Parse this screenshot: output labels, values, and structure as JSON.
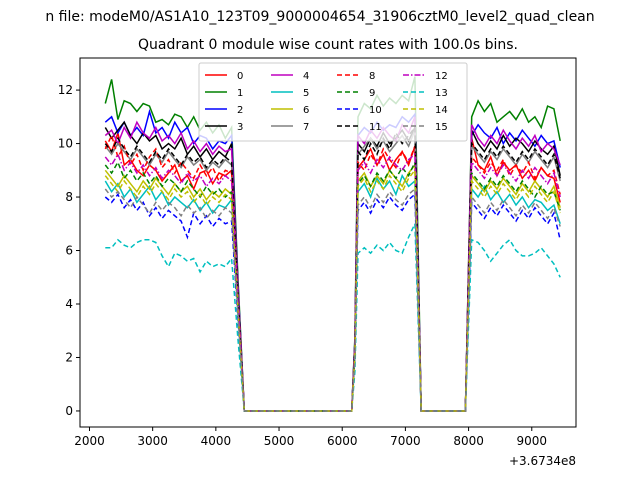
{
  "chart_data": {
    "type": "line",
    "suptitle": "n file: modeM0/AS1A10_123T09_9000004654_31906cztM0_level2_quad_clean",
    "title": "Quadrant 0 module wise count rates with 100.0s bins.",
    "x_offset_label": "+3.6734e8",
    "xlim": [
      1850,
      9700
    ],
    "ylim": [
      -0.6,
      13.2
    ],
    "x_ticks": [
      2000,
      3000,
      4000,
      5000,
      6000,
      7000,
      8000,
      9000
    ],
    "y_ticks": [
      0,
      2,
      4,
      6,
      8,
      10,
      12
    ],
    "x_tick_labels": [
      "2000",
      "3000",
      "4000",
      "5000",
      "6000",
      "7000",
      "8000",
      "9000"
    ],
    "y_tick_labels": [
      "0",
      "2",
      "4",
      "6",
      "8",
      "10",
      "12"
    ],
    "grid": false,
    "legend_placement": "top-center",
    "legend_columns": 4,
    "segments": [
      {
        "start": 2250,
        "n": 21
      },
      {
        "start": 6250,
        "n": 10
      },
      {
        "start": 8050,
        "n": 15
      }
    ],
    "zero_span": [
      4450,
      6150
    ],
    "gap_span": [
      7250,
      7950
    ],
    "series": [
      {
        "name": "0",
        "color": "#ff0000",
        "dash": "solid",
        "base": 9.0,
        "s1": [
          10.1,
          9.7,
          10.4,
          9.2,
          9.4,
          9.0,
          8.8,
          9.2,
          9.0,
          8.6,
          8.9,
          9.2,
          8.6,
          8.8,
          8.3,
          8.9,
          9.0,
          8.5,
          8.9,
          8.8,
          9.0
        ],
        "s2": [
          9.1,
          9.4,
          9.8,
          9.2,
          9.6,
          9.0,
          9.4,
          9.7,
          9.2,
          9.9
        ],
        "s3": [
          10.2,
          9.2,
          9.0,
          9.5,
          8.8,
          9.3,
          9.0,
          9.2,
          8.7,
          9.0,
          8.6,
          9.1,
          8.8,
          8.7,
          7.8
        ]
      },
      {
        "name": "1",
        "color": "#008000",
        "dash": "solid",
        "base": 11.0,
        "s1": [
          11.5,
          12.4,
          10.9,
          11.6,
          11.5,
          11.2,
          11.5,
          11.4,
          10.8,
          10.9,
          10.7,
          11.1,
          11.0,
          10.6,
          11.0,
          10.5,
          10.8,
          10.4,
          10.7,
          10.2,
          10.6
        ],
        "s2": [
          11.0,
          11.5,
          11.3,
          11.8,
          11.4,
          11.7,
          11.5,
          11.8,
          11.6,
          12.5
        ],
        "s3": [
          11.0,
          11.6,
          11.2,
          11.5,
          10.8,
          11.0,
          11.2,
          10.9,
          11.3,
          10.8,
          11.0,
          10.6,
          11.4,
          11.3,
          10.1
        ]
      },
      {
        "name": "2",
        "color": "#0000ff",
        "dash": "solid",
        "base": 10.5,
        "s1": [
          10.8,
          11.0,
          10.4,
          10.8,
          10.3,
          10.6,
          10.3,
          11.2,
          10.4,
          10.6,
          10.2,
          10.8,
          10.4,
          10.6,
          10.0,
          10.3,
          10.2,
          9.8,
          10.1,
          10.0,
          10.3
        ],
        "s2": [
          10.3,
          10.6,
          10.4,
          10.8,
          10.5,
          10.7,
          10.6,
          11.0,
          10.8,
          11.1
        ],
        "s3": [
          10.3,
          10.7,
          10.4,
          10.2,
          10.6,
          10.0,
          10.4,
          10.1,
          10.5,
          10.2,
          9.9,
          10.3,
          10.0,
          10.1,
          9.1
        ]
      },
      {
        "name": "3",
        "color": "#000000",
        "dash": "solid",
        "base": 10.2,
        "s1": [
          10.6,
          10.2,
          10.5,
          10.8,
          10.3,
          10.0,
          10.4,
          10.1,
          10.3,
          9.8,
          10.0,
          9.8,
          10.2,
          9.6,
          9.9,
          9.5,
          9.8,
          9.4,
          9.7,
          9.5,
          10.0
        ],
        "s2": [
          10.0,
          9.7,
          10.2,
          9.9,
          10.4,
          10.0,
          10.2,
          10.5,
          10.1,
          10.6
        ],
        "s3": [
          10.5,
          10.0,
          9.7,
          10.1,
          9.8,
          10.3,
          9.9,
          10.2,
          10.0,
          9.7,
          10.1,
          9.8,
          9.6,
          9.9,
          8.8
        ]
      },
      {
        "name": "4",
        "color": "#bf00bf",
        "dash": "solid",
        "base": 10.2,
        "s1": [
          10.3,
          10.5,
          10.0,
          10.6,
          10.2,
          10.8,
          10.4,
          10.2,
          10.6,
          10.1,
          10.3,
          10.0,
          10.4,
          9.8,
          10.1,
          9.7,
          10.0,
          9.6,
          9.9,
          9.7,
          9.8
        ],
        "s2": [
          10.3,
          10.0,
          10.5,
          10.2,
          10.6,
          10.3,
          10.1,
          10.7,
          10.4,
          11.0
        ],
        "s3": [
          10.7,
          10.2,
          9.9,
          10.3,
          10.0,
          10.5,
          10.1,
          9.8,
          10.2,
          9.9,
          10.3,
          9.7,
          10.0,
          9.8,
          9.2
        ]
      },
      {
        "name": "5",
        "color": "#00bfbf",
        "dash": "solid",
        "base": 8.0,
        "s1": [
          8.6,
          8.2,
          8.5,
          8.0,
          8.3,
          7.8,
          8.1,
          8.4,
          7.9,
          8.2,
          7.7,
          8.0,
          7.8,
          7.6,
          7.9,
          7.5,
          7.8,
          7.4,
          7.7,
          7.6,
          7.9
        ],
        "s2": [
          8.2,
          8.5,
          8.0,
          8.7,
          8.3,
          8.6,
          8.1,
          8.8,
          8.4,
          8.6
        ],
        "s3": [
          8.3,
          8.0,
          8.4,
          7.9,
          8.2,
          7.8,
          8.1,
          7.7,
          8.0,
          7.6,
          7.9,
          7.8,
          7.5,
          7.7,
          7.0
        ]
      },
      {
        "name": "6",
        "color": "#bfbf00",
        "dash": "solid",
        "base": 8.5,
        "s1": [
          9.0,
          8.7,
          8.4,
          8.8,
          8.5,
          8.2,
          8.6,
          8.3,
          8.7,
          8.4,
          8.1,
          8.5,
          8.2,
          8.4,
          8.0,
          8.3,
          7.9,
          8.2,
          8.0,
          8.3,
          8.1
        ],
        "s2": [
          8.6,
          8.9,
          8.4,
          8.8,
          8.5,
          9.0,
          8.7,
          8.4,
          8.9,
          9.2
        ],
        "s3": [
          8.8,
          8.5,
          8.2,
          8.6,
          8.3,
          8.7,
          8.4,
          8.1,
          8.5,
          8.2,
          8.6,
          8.3,
          8.0,
          8.4,
          7.6
        ]
      },
      {
        "name": "7",
        "color": "#808080",
        "dash": "solid",
        "base": 9.8,
        "s1": [
          9.9,
          9.6,
          10.0,
          9.7,
          9.4,
          9.8,
          9.5,
          9.2,
          9.6,
          9.3,
          9.7,
          9.4,
          9.1,
          9.5,
          9.2,
          9.4,
          9.0,
          9.3,
          9.1,
          9.4,
          9.2
        ],
        "s2": [
          9.6,
          9.9,
          10.2,
          9.8,
          10.1,
          9.7,
          10.0,
          10.3,
          9.9,
          10.5
        ],
        "s3": [
          9.9,
          9.6,
          9.3,
          9.7,
          9.4,
          9.8,
          9.5,
          9.2,
          9.6,
          9.3,
          9.7,
          9.4,
          9.1,
          9.5,
          8.6
        ]
      },
      {
        "name": "8",
        "color": "#ff0000",
        "dash": "dashed",
        "base": 9.5,
        "s1": [
          9.8,
          10.3,
          9.5,
          9.9,
          9.2,
          9.6,
          9.0,
          9.5,
          9.8,
          9.1,
          9.4,
          8.9,
          9.3,
          9.0,
          8.7,
          9.2,
          8.8,
          9.1,
          8.6,
          9.0,
          8.9
        ],
        "s2": [
          9.3,
          9.0,
          9.6,
          9.2,
          9.8,
          9.4,
          9.1,
          9.7,
          9.3,
          9.9
        ],
        "s3": [
          9.5,
          9.2,
          8.9,
          9.3,
          9.0,
          9.4,
          8.8,
          9.2,
          8.9,
          9.3,
          8.7,
          9.1,
          8.8,
          9.0,
          8.1
        ]
      },
      {
        "name": "9",
        "color": "#008000",
        "dash": "dashed",
        "base": 8.8,
        "s1": [
          9.2,
          8.9,
          9.3,
          8.7,
          9.0,
          8.6,
          8.9,
          8.5,
          8.8,
          8.4,
          8.7,
          8.5,
          8.2,
          8.6,
          8.3,
          8.0,
          8.4,
          8.1,
          8.3,
          8.0,
          8.2
        ],
        "s2": [
          8.5,
          8.8,
          8.4,
          8.9,
          8.6,
          9.0,
          8.7,
          9.1,
          8.8,
          9.3
        ],
        "s3": [
          8.9,
          8.6,
          8.3,
          8.7,
          8.4,
          8.8,
          8.5,
          8.2,
          8.6,
          8.3,
          8.0,
          8.4,
          8.1,
          8.2,
          7.5
        ]
      },
      {
        "name": "10",
        "color": "#0000ff",
        "dash": "dashed",
        "base": 7.6,
        "s1": [
          8.0,
          7.8,
          8.1,
          7.6,
          7.9,
          7.5,
          7.8,
          7.3,
          7.6,
          7.2,
          7.5,
          7.3,
          7.1,
          6.5,
          7.4,
          7.0,
          7.3,
          6.9,
          7.2,
          7.0,
          7.1
        ],
        "s2": [
          7.5,
          7.8,
          7.4,
          7.9,
          7.6,
          8.0,
          7.7,
          7.5,
          7.9,
          8.1
        ],
        "s3": [
          7.8,
          7.5,
          7.2,
          7.6,
          7.3,
          7.7,
          7.4,
          7.1,
          7.5,
          7.2,
          7.6,
          7.3,
          7.0,
          7.4,
          6.4
        ]
      },
      {
        "name": "11",
        "color": "#000000",
        "dash": "dashed",
        "base": 9.6,
        "s1": [
          10.0,
          9.7,
          10.2,
          9.8,
          9.5,
          9.9,
          9.6,
          9.3,
          9.7,
          9.4,
          9.8,
          9.5,
          9.2,
          9.6,
          9.3,
          9.5,
          9.1,
          9.4,
          9.2,
          9.5,
          9.3
        ],
        "s2": [
          9.7,
          9.4,
          10.0,
          9.6,
          10.2,
          9.8,
          10.4,
          10.0,
          10.3,
          10.6
        ],
        "s3": [
          10.0,
          9.7,
          9.4,
          9.8,
          9.5,
          9.9,
          9.6,
          9.3,
          9.7,
          9.4,
          9.8,
          9.5,
          9.2,
          9.6,
          8.7
        ]
      },
      {
        "name": "12",
        "color": "#bf00bf",
        "dash": "dashdot",
        "base": 9.2,
        "s1": [
          9.5,
          9.2,
          9.6,
          9.0,
          9.3,
          8.9,
          9.2,
          8.8,
          9.1,
          8.7,
          9.0,
          8.8,
          8.5,
          8.9,
          8.6,
          8.8,
          8.4,
          8.7,
          8.5,
          8.8,
          8.6
        ],
        "s2": [
          9.0,
          9.3,
          8.9,
          9.4,
          9.1,
          9.5,
          9.2,
          9.0,
          9.4,
          9.6
        ],
        "s3": [
          9.3,
          9.0,
          8.7,
          9.1,
          8.8,
          9.2,
          8.9,
          8.6,
          9.0,
          8.7,
          9.1,
          8.8,
          8.5,
          8.9,
          8.0
        ]
      },
      {
        "name": "13",
        "color": "#00bfbf",
        "dash": "dashed",
        "base": 5.9,
        "s1": [
          6.1,
          6.1,
          6.4,
          6.2,
          6.1,
          6.3,
          6.4,
          6.4,
          6.3,
          5.8,
          5.4,
          5.9,
          5.8,
          5.6,
          5.7,
          5.2,
          5.6,
          5.4,
          5.5,
          5.4,
          5.7
        ],
        "s2": [
          5.9,
          6.1,
          5.9,
          6.2,
          6.0,
          6.3,
          6.0,
          5.9,
          6.5,
          7.0
        ],
        "s3": [
          6.4,
          6.3,
          6.0,
          5.6,
          5.9,
          6.2,
          6.4,
          6.0,
          5.8,
          5.8,
          5.9,
          6.1,
          5.8,
          5.5,
          5.0
        ]
      },
      {
        "name": "14",
        "color": "#bfbf00",
        "dash": "dashed",
        "base": 8.2,
        "s1": [
          8.8,
          8.5,
          8.2,
          8.6,
          8.3,
          8.0,
          8.4,
          8.1,
          8.5,
          8.2,
          7.9,
          8.3,
          8.0,
          8.2,
          7.8,
          8.1,
          7.7,
          8.0,
          7.8,
          8.1,
          7.9
        ],
        "s2": [
          8.4,
          8.7,
          8.2,
          8.6,
          8.3,
          8.8,
          8.5,
          8.2,
          8.7,
          9.0
        ],
        "s3": [
          8.6,
          8.3,
          8.0,
          8.4,
          8.1,
          8.5,
          8.2,
          7.9,
          8.3,
          8.0,
          8.4,
          8.1,
          7.8,
          8.2,
          7.4
        ]
      },
      {
        "name": "15",
        "color": "#808080",
        "dash": "dashed",
        "base": 8.0,
        "s1": [
          8.3,
          8.0,
          8.2,
          7.9,
          7.6,
          8.0,
          7.7,
          7.4,
          7.8,
          7.5,
          7.8,
          7.6,
          7.3,
          7.7,
          7.4,
          7.6,
          7.2,
          7.5,
          7.3,
          7.6,
          7.4
        ],
        "s2": [
          7.7,
          8.0,
          7.6,
          8.1,
          7.8,
          8.2,
          7.9,
          7.7,
          8.1,
          8.3
        ],
        "s3": [
          8.0,
          7.7,
          7.4,
          7.8,
          7.5,
          7.9,
          7.6,
          7.3,
          7.7,
          7.4,
          7.8,
          7.5,
          7.2,
          7.6,
          6.9
        ]
      }
    ]
  }
}
